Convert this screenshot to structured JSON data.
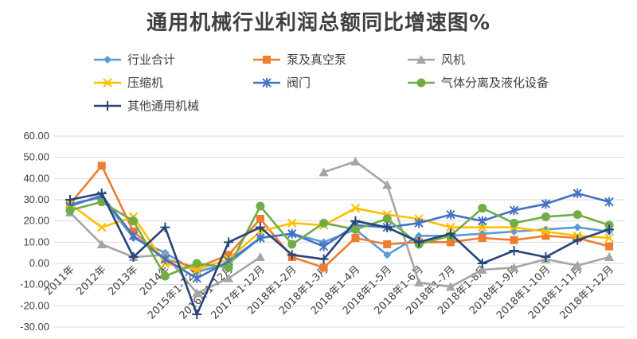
{
  "chart_data": {
    "type": "line",
    "title": "通用机械行业利润总额同比增速图%",
    "xlabel": "",
    "ylabel": "",
    "ylim": [
      -30,
      60
    ],
    "yticks": [
      "60.00",
      "50.00",
      "40.00",
      "30.00",
      "20.00",
      "10.00",
      "0.00",
      "-10.00",
      "-20.00",
      "-30.00"
    ],
    "grid": true,
    "legend_position": "top",
    "categories": [
      "2011年",
      "2012年",
      "2013年",
      "2014年",
      "2015年1-12月",
      "2016年1-12月",
      "2017年1-12月",
      "2018年1-2月",
      "2018年1-3月",
      "2018年1-4月",
      "2018年1-5月",
      "2018年1-6月",
      "2018年1-7月",
      "2018年1-8月",
      "2018年1-9月",
      "2018年1-10月",
      "2018年1-11月",
      "2018年1-12月"
    ],
    "series": [
      {
        "name": "行业合计",
        "color": "#5B9BD5",
        "marker": "diamond",
        "values": [
          28,
          31,
          12,
          5,
          -4,
          0,
          12,
          14,
          10,
          16,
          4,
          13,
          13,
          14,
          15,
          16,
          17,
          15
        ]
      },
      {
        "name": "泵及真空泵",
        "color": "#ED7D31",
        "marker": "square",
        "values": [
          28,
          46,
          15,
          2,
          -2,
          4,
          21,
          3,
          -2,
          12,
          9,
          10,
          10,
          12,
          11,
          13,
          12,
          8
        ]
      },
      {
        "name": "风机",
        "color": "#A5A5A5",
        "marker": "triangle",
        "values": [
          24,
          9,
          3,
          4,
          -14,
          -7,
          3,
          null,
          43,
          48,
          37,
          -9,
          -11,
          -3,
          -2,
          2,
          -1,
          3
        ]
      },
      {
        "name": "压缩机",
        "color": "#FFC000",
        "marker": "x",
        "values": [
          28,
          17,
          22,
          0,
          -3,
          2,
          15,
          19,
          18,
          26,
          23,
          21,
          17,
          17,
          17,
          15,
          13,
          12
        ]
      },
      {
        "name": "阀门",
        "color": "#4472C4",
        "marker": "star",
        "values": [
          27,
          32,
          13,
          2,
          -7,
          1,
          12,
          14,
          8,
          18,
          17,
          19,
          23,
          20,
          25,
          28,
          33,
          29
        ]
      },
      {
        "name": "气体分离及液化设备",
        "color": "#70AD47",
        "marker": "circle",
        "values": [
          25,
          29,
          20,
          -6,
          0,
          -2,
          27,
          9,
          19,
          16,
          21,
          9,
          13,
          26,
          19,
          22,
          23,
          18
        ]
      },
      {
        "name": "其他通用机械",
        "color": "#264478",
        "marker": "plus",
        "values": [
          30,
          33,
          3,
          17,
          -24,
          10,
          17,
          4,
          2,
          20,
          17,
          10,
          14,
          0,
          6,
          3,
          11,
          16
        ]
      }
    ]
  }
}
